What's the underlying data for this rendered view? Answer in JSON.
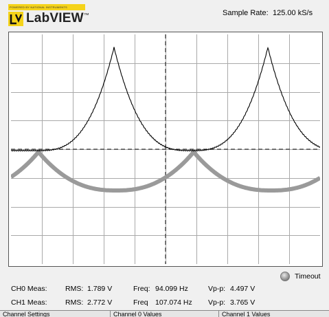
{
  "logo": {
    "tagline": "POWERED BY NATIONAL INSTRUMENTS",
    "brand": "LabVIEW",
    "trademark": "™"
  },
  "sample_rate": {
    "label": "Sample Rate:",
    "value": "125.00 kS/s"
  },
  "graph": {
    "grid_divisions_x": 10,
    "grid_divisions_y": 8,
    "ch0_color": "#000000",
    "ch1_color": "#9a9a9a"
  },
  "measurements": {
    "ch0": {
      "label": "CH0 Meas:",
      "rms_label": "RMS:",
      "rms": "1.789 V",
      "freq_label": "Freq:",
      "freq": "94.099 Hz",
      "vpp_label": "Vp-p:",
      "vpp": "4.497 V"
    },
    "ch1": {
      "label": "CH1 Meas:",
      "rms_label": "RMS:",
      "rms": "2.772 V",
      "freq_label": "Freq",
      "freq": "107.074 Hz",
      "vpp_label": "Vp-p:",
      "vpp": "3.765 V"
    }
  },
  "timeout": {
    "label": "Timeout"
  },
  "tabs": [
    "Channel Settings",
    "Channel 0 Values",
    "Channel 1 Values"
  ]
}
